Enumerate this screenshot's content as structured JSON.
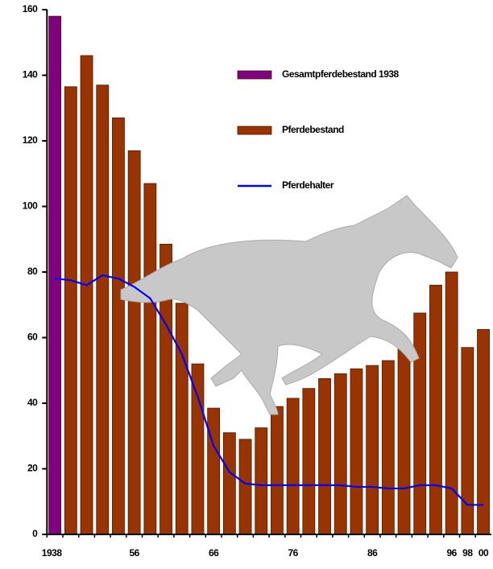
{
  "chart_data": {
    "type": "bar",
    "categories": [
      "1938",
      null,
      null,
      null,
      null,
      "56",
      null,
      null,
      null,
      null,
      "66",
      null,
      null,
      null,
      null,
      "76",
      null,
      null,
      null,
      null,
      "86",
      null,
      null,
      null,
      null,
      "96",
      "98",
      "00"
    ],
    "series": [
      {
        "name": "Gesamtpferdebestand 1938",
        "type": "bar",
        "color": "#800080",
        "values": [
          158,
          null,
          null,
          null,
          null,
          null,
          null,
          null,
          null,
          null,
          null,
          null,
          null,
          null,
          null,
          null,
          null,
          null,
          null,
          null,
          null,
          null,
          null,
          null,
          null,
          null,
          null,
          null
        ]
      },
      {
        "name": "Pferdebestand",
        "type": "bar",
        "color": "#993300",
        "values": [
          null,
          136.5,
          146,
          137,
          127,
          117,
          107,
          88.5,
          70.5,
          52,
          38.5,
          31,
          29,
          32.5,
          39,
          41.5,
          44.5,
          47.5,
          49,
          50.5,
          51.5,
          53,
          58.5,
          67.5,
          76,
          80,
          57,
          62.5
        ]
      },
      {
        "name": "Pferdehalter",
        "type": "line",
        "color": "#0000ff",
        "values": [
          78,
          77.5,
          76,
          79,
          78,
          75.5,
          72,
          64,
          55,
          42,
          27,
          19,
          15.5,
          15,
          15,
          15,
          15,
          15,
          15,
          14.5,
          14.5,
          14,
          14,
          15,
          15,
          14,
          9,
          9
        ]
      }
    ],
    "ylim": [
      0,
      160
    ],
    "yticks": [
      0,
      20,
      40,
      60,
      80,
      100,
      120,
      140,
      160
    ]
  }
}
